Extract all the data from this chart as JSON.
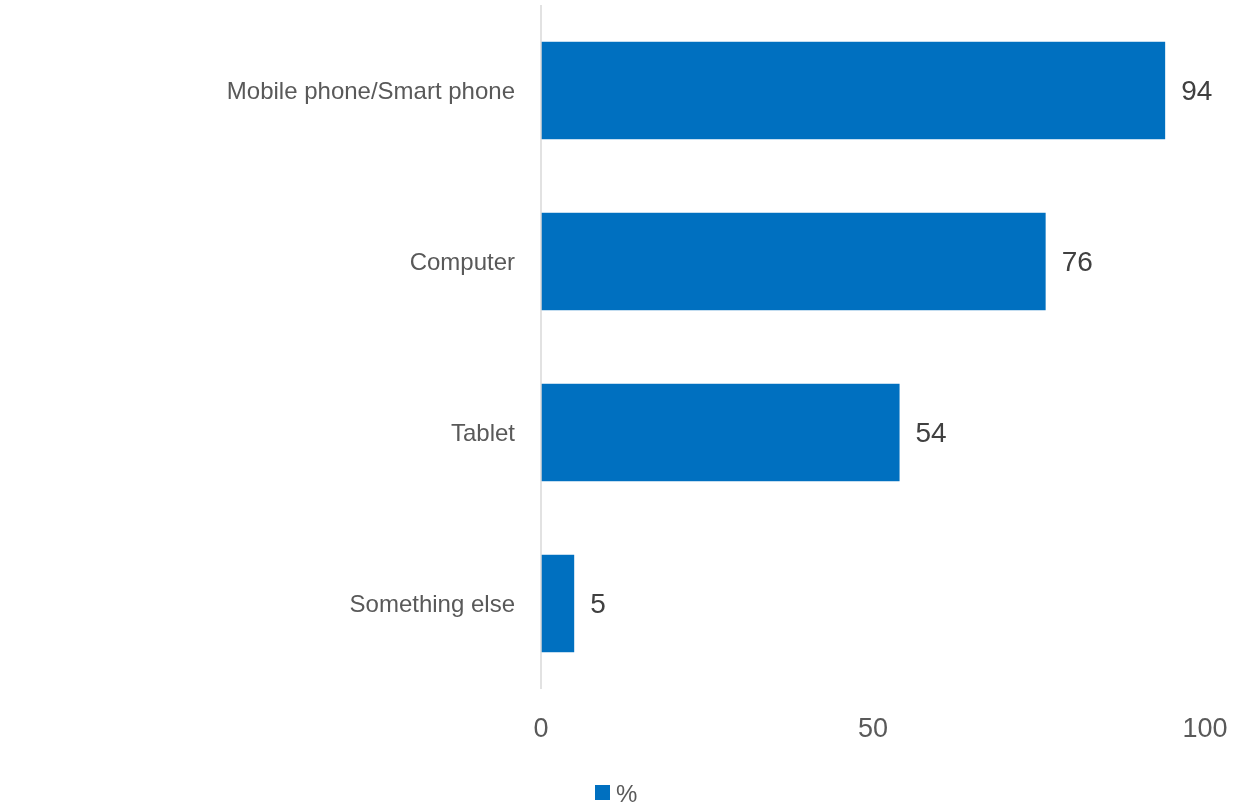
{
  "chart_data": {
    "type": "bar",
    "orientation": "horizontal",
    "categories": [
      "Mobile phone/Smart phone",
      "Computer",
      "Tablet",
      "Something else"
    ],
    "series": [
      {
        "name": "%",
        "color": "#0070c0",
        "values": [
          94,
          76,
          54,
          5
        ]
      }
    ],
    "xlim": [
      0,
      100
    ],
    "xticks": [
      0,
      50,
      100
    ],
    "data_labels": true,
    "legend": "bottom",
    "grid": false
  }
}
